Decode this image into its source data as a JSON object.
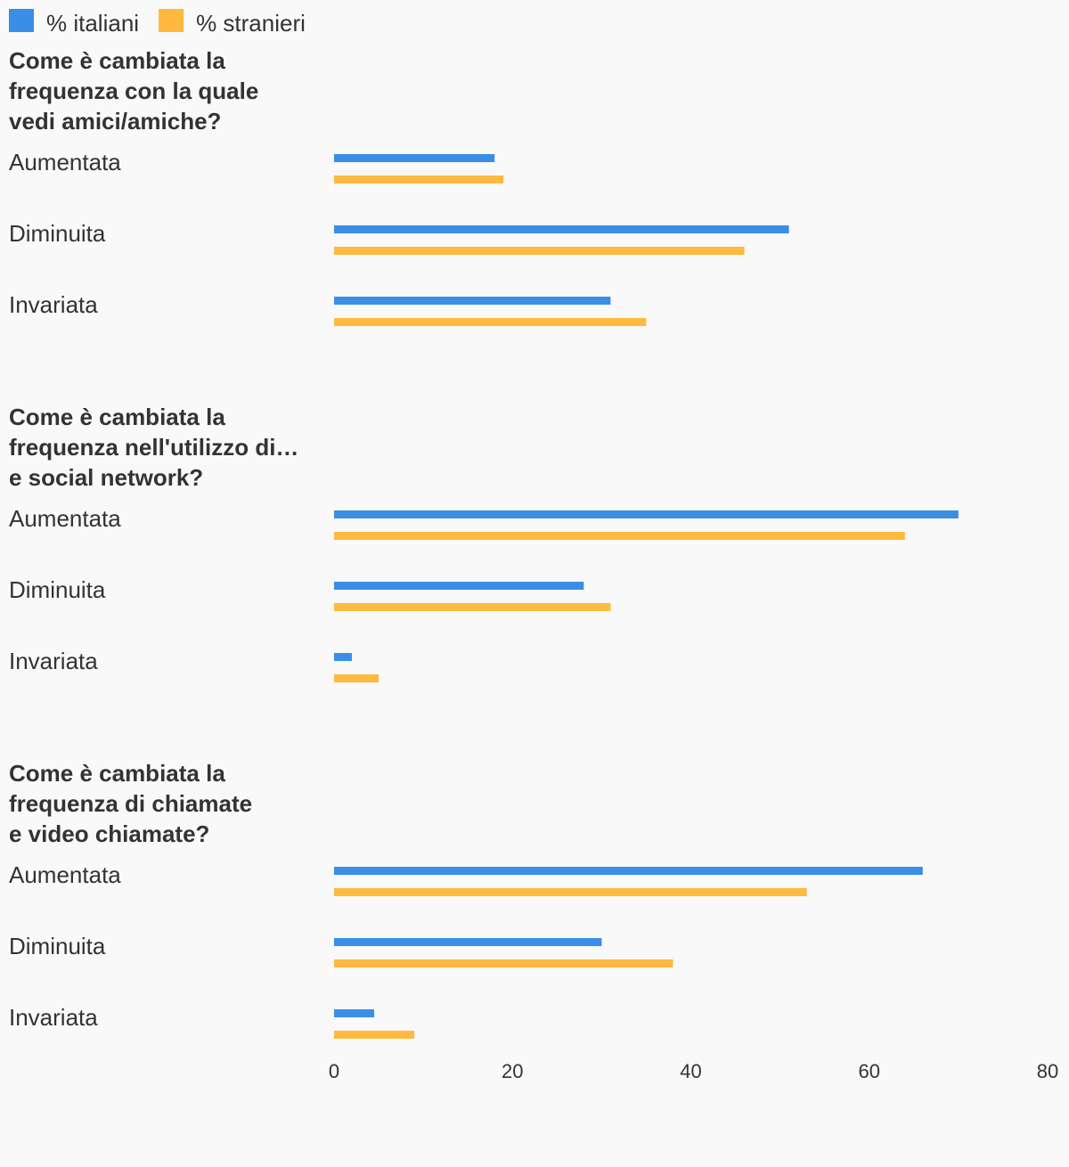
{
  "chart_data": {
    "type": "bar",
    "orientation": "horizontal",
    "legend_position": "top-left",
    "grid": false,
    "xlim": [
      0,
      80
    ],
    "xticks": [
      "0",
      "20",
      "40",
      "60",
      "80"
    ],
    "series": [
      {
        "name": "% italiani",
        "color": "#3a8ee6"
      },
      {
        "name": "% stranieri",
        "color": "#ffb93f"
      }
    ],
    "groups": [
      {
        "title_lines": [
          "Come è cambiata la",
          "frequenza con la quale",
          "vedi amici/amiche?"
        ],
        "categories": [
          "Aumentata",
          "Diminuita",
          "Invariata"
        ],
        "values": {
          "% italiani": [
            18,
            51,
            31
          ],
          "% stranieri": [
            19,
            46,
            35
          ]
        }
      },
      {
        "title_lines": [
          "Come è cambiata la",
          "frequenza nell'utilizzo di…",
          "e social network?"
        ],
        "categories": [
          "Aumentata",
          "Diminuita",
          "Invariata"
        ],
        "values": {
          "% italiani": [
            70,
            28,
            2
          ],
          "% stranieri": [
            64,
            31,
            5
          ]
        }
      },
      {
        "title_lines": [
          "Come è cambiata la",
          "frequenza di chiamate",
          "e video chiamate?"
        ],
        "categories": [
          "Aumentata",
          "Diminuita",
          "Invariata"
        ],
        "values": {
          "% italiani": [
            66,
            30,
            4.5
          ],
          "% stranieri": [
            53,
            38,
            9
          ]
        }
      }
    ]
  }
}
